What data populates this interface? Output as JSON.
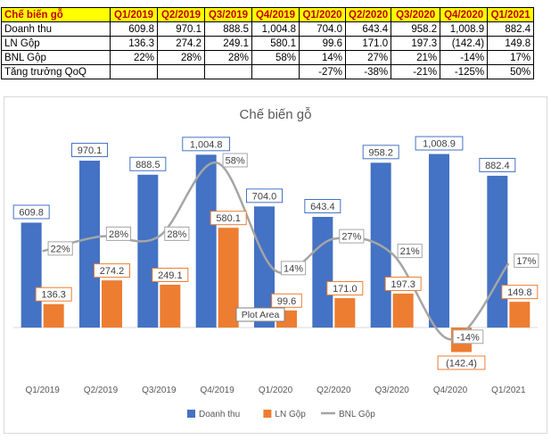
{
  "table": {
    "header": [
      "Chế biến gỗ",
      "Q1/2019",
      "Q2/2019",
      "Q3/2019",
      "Q4/2019",
      "Q1/2020",
      "Q2/2020",
      "Q3/2020",
      "Q4/2020",
      "Q1/2021"
    ],
    "rows": [
      [
        "Doanh thu",
        "609.8",
        "970.1",
        "888.5",
        "1,004.8",
        "704.0",
        "643.4",
        "958.2",
        "1,008.9",
        "882.4"
      ],
      [
        "LN Gộp",
        "136.3",
        "274.2",
        "249.1",
        "580.1",
        "99.6",
        "171.0",
        "197.3",
        "(142.4)",
        "149.8"
      ],
      [
        "BNL Gộp",
        "22%",
        "28%",
        "28%",
        "58%",
        "14%",
        "27%",
        "21%",
        "-14%",
        "17%"
      ],
      [
        "Tăng trưởng QoQ",
        "",
        "",
        "",
        "",
        "-27%",
        "-38%",
        "-21%",
        "-125%",
        "50%"
      ]
    ]
  },
  "chart_data": {
    "type": "bar",
    "title": "Chế biến gỗ",
    "categories": [
      "Q1/2019",
      "Q2/2019",
      "Q3/2019",
      "Q4/2019",
      "Q1/2020",
      "Q2/2020",
      "Q3/2020",
      "Q4/2020",
      "Q1/2021"
    ],
    "series": [
      {
        "name": "Doanh thu",
        "kind": "bar",
        "color": "#4472c4",
        "values": [
          609.8,
          970.1,
          888.5,
          1004.8,
          704.0,
          643.4,
          958.2,
          1008.9,
          882.4
        ],
        "labels": [
          "609.8",
          "970.1",
          "888.5",
          "1,004.8",
          "704.0",
          "643.4",
          "958.2",
          "1,008.9",
          "882.4"
        ]
      },
      {
        "name": "LN Gộp",
        "kind": "bar",
        "color": "#ed7d31",
        "values": [
          136.3,
          274.2,
          249.1,
          580.1,
          99.6,
          171.0,
          197.3,
          -142.4,
          149.8
        ],
        "labels": [
          "136.3",
          "274.2",
          "249.1",
          "580.1",
          "99.6",
          "171.0",
          "197.3",
          "(142.4)",
          "149.8"
        ]
      },
      {
        "name": "BNL Gộp",
        "kind": "line",
        "color": "#a5a5a5",
        "values": [
          22,
          28,
          28,
          58,
          14,
          27,
          21,
          -14,
          17
        ],
        "labels": [
          "22%",
          "28%",
          "28%",
          "58%",
          "14%",
          "27%",
          "21%",
          "-14%",
          "17%"
        ]
      }
    ],
    "ylim_primary": [
      -250,
      1100
    ],
    "ylim_secondary": [
      -23,
      68
    ],
    "annotation": "Plot Area",
    "legend": "bottom"
  }
}
